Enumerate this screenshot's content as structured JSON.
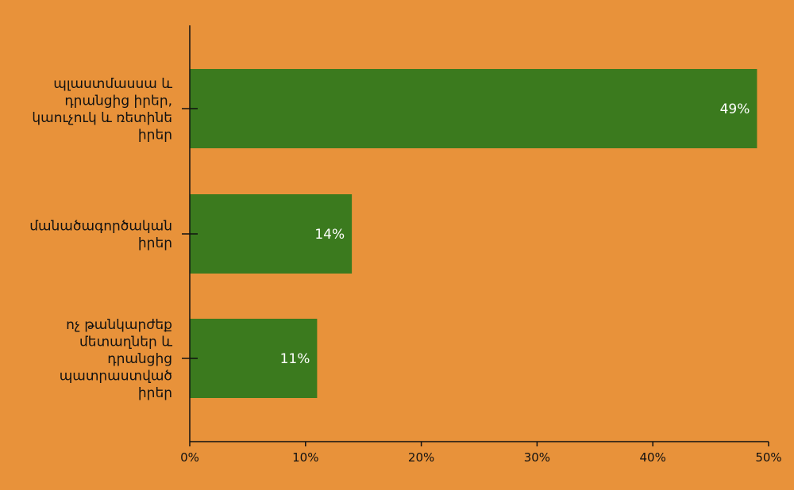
{
  "chart_data": {
    "type": "bar",
    "orientation": "horizontal",
    "categories": [
      [
        "պլաստմասսա և",
        "դրանցից իրեր,",
        "կաուչուկ և ռետինե",
        "իրեր"
      ],
      [
        "մանածագործական",
        "իրեր"
      ],
      [
        "ոչ թանկարժեք",
        "մետաղներ և",
        "դրանցից",
        "պատրաստված",
        "իրեր"
      ]
    ],
    "values": [
      49,
      14,
      11
    ],
    "value_labels": [
      "49%",
      "14%",
      "11%"
    ],
    "xlim": [
      0,
      50
    ],
    "xticks": [
      0,
      10,
      20,
      30,
      40,
      50
    ],
    "xtick_labels": [
      "0%",
      "10%",
      "20%",
      "30%",
      "40%",
      "50%"
    ],
    "title": "",
    "xlabel": "",
    "ylabel": "",
    "grid": false,
    "legend": "none",
    "colors": {
      "background": "#E8923A",
      "bar": "#3B7A1E",
      "axis": "#111111",
      "bar_label": "#FFFFFF"
    }
  }
}
